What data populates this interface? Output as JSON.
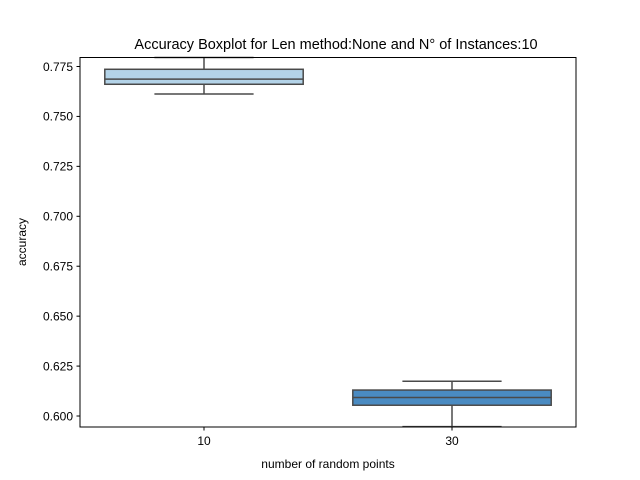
{
  "chart_data": {
    "type": "boxplot",
    "title": "Accuracy Boxplot for Len method:None and N° of Instances:10",
    "xlabel": "number of random points",
    "ylabel": "accuracy",
    "ylim": [
      0.5945,
      0.7795
    ],
    "yticks": [
      "0.600",
      "0.625",
      "0.650",
      "0.675",
      "0.700",
      "0.725",
      "0.750",
      "0.775"
    ],
    "yticks_values": [
      0.6,
      0.625,
      0.65,
      0.675,
      0.7,
      0.725,
      0.75,
      0.775
    ],
    "categories": [
      "10",
      "30"
    ],
    "boxes": [
      {
        "category": "10",
        "whisker_low": 0.7612,
        "q1": 0.7661,
        "median": 0.7687,
        "q3": 0.7736,
        "whisker_high": 0.7795,
        "color": "#b3d3e8"
      },
      {
        "category": "30",
        "whisker_low": 0.5947,
        "q1": 0.6054,
        "median": 0.6093,
        "q3": 0.613,
        "whisker_high": 0.6174,
        "color": "#4a8bc2"
      }
    ],
    "grid": false,
    "legend": "none"
  }
}
